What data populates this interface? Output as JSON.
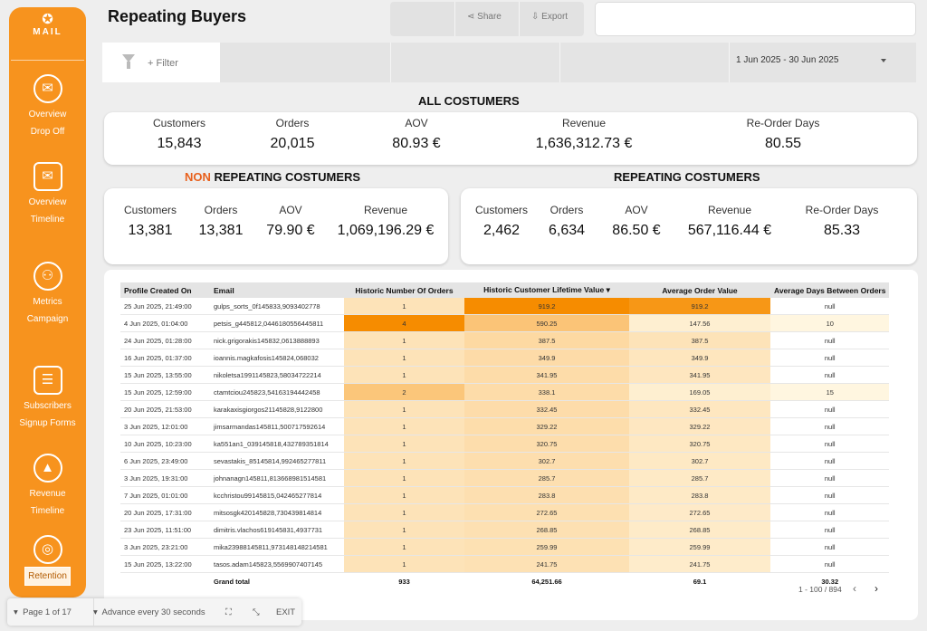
{
  "sidebar": {
    "logo_text": "MAIL",
    "items": [
      {
        "line1": "Overview",
        "line2": "Drop Off",
        "icon": "envelope-gear-icon"
      },
      {
        "line1": "Overview",
        "line2": "Timeline",
        "icon": "envelope-star-icon"
      },
      {
        "line1": "Metrics",
        "line2": "Campaign",
        "icon": "people-network-icon"
      },
      {
        "line1": "Subscribers",
        "line2": "Signup Forms",
        "icon": "form-list-icon"
      },
      {
        "line1": "Revenue",
        "line2": "Timeline",
        "icon": "revenue-chart-icon"
      },
      {
        "line1": "Retention",
        "icon": "retention-icon"
      }
    ]
  },
  "header": {
    "title": "Repeating Buyers",
    "share_label": "Share",
    "export_label": "Export"
  },
  "filter": {
    "add_label": "+ Filter",
    "date_range": "1 Jun 2025 - 30 Jun 2025"
  },
  "all": {
    "title": "ALL COSTUMERS",
    "kpis": [
      {
        "label": "Customers",
        "value": "15,843"
      },
      {
        "label": "Orders",
        "value": "20,015"
      },
      {
        "label": "AOV",
        "value": "80.93 €"
      },
      {
        "label": "Revenue",
        "value": "1,636,312.73 €"
      },
      {
        "label": "Re-Order Days",
        "value": "80.55"
      }
    ]
  },
  "non_repeating": {
    "title_accent": "NON",
    "title_rest": " REPEATING COSTUMERS",
    "kpis": [
      {
        "label": "Customers",
        "value": "13,381"
      },
      {
        "label": "Orders",
        "value": "13,381"
      },
      {
        "label": "AOV",
        "value": "79.90 €"
      },
      {
        "label": "Revenue",
        "value": "1,069,196.29 €"
      }
    ]
  },
  "repeating": {
    "title": "REPEATING COSTUMERS",
    "kpis": [
      {
        "label": "Customers",
        "value": "2,462"
      },
      {
        "label": "Orders",
        "value": "6,634"
      },
      {
        "label": "AOV",
        "value": "86.50 €"
      },
      {
        "label": "Revenue",
        "value": "567,116.44 €"
      },
      {
        "label": "Re-Order Days",
        "value": "85.33"
      }
    ]
  },
  "table": {
    "columns": [
      "Profile Created On",
      "Email",
      "Historic Number Of Orders",
      "Historic Customer Lifetime Value",
      "Average Order Value",
      "Average Days Between Orders"
    ],
    "sort_indicator": "▾",
    "rows": [
      [
        "25 Jun 2025, 21:49:00",
        "gulps_sorts_0f145833,9093402778",
        "1",
        "919.2",
        "919.2",
        "null"
      ],
      [
        "4 Jun 2025, 01:04:00",
        "petsis_g445812,0446180556445811",
        "4",
        "590.25",
        "147.56",
        "10"
      ],
      [
        "24 Jun 2025, 01:28:00",
        "nick.grigorakis145832,0613888893",
        "1",
        "387.5",
        "387.5",
        "null"
      ],
      [
        "16 Jun 2025, 01:37:00",
        "ioannis.magkafosis145824,068032",
        "1",
        "349.9",
        "349.9",
        "null"
      ],
      [
        "15 Jun 2025, 13:55:00",
        "nikoletsa1991145823,58034722214",
        "1",
        "341.95",
        "341.95",
        "null"
      ],
      [
        "15 Jun 2025, 12:59:00",
        "ctamtciou245823,54163194442458",
        "2",
        "338.1",
        "169.05",
        "15"
      ],
      [
        "20 Jun 2025, 21:53:00",
        "karakaxisgiorgos21145828,9122800",
        "1",
        "332.45",
        "332.45",
        "null"
      ],
      [
        "3 Jun 2025, 12:01:00",
        "jimsarmandas145811,500717592614",
        "1",
        "329.22",
        "329.22",
        "null"
      ],
      [
        "10 Jun 2025, 10:23:00",
        "ka551an1_039145818,432789351814",
        "1",
        "320.75",
        "320.75",
        "null"
      ],
      [
        "6 Jun 2025, 23:49:00",
        "sevastakis_85145814,992465277811",
        "1",
        "302.7",
        "302.7",
        "null"
      ],
      [
        "3 Jun 2025, 19:31:00",
        "johnanagn145811,813668981514581",
        "1",
        "285.7",
        "285.7",
        "null"
      ],
      [
        "7 Jun 2025, 01:01:00",
        "kcchristou99145815,042465277814",
        "1",
        "283.8",
        "283.8",
        "null"
      ],
      [
        "20 Jun 2025, 17:31:00",
        "mitsosgk420145828,730439814814",
        "1",
        "272.65",
        "272.65",
        "null"
      ],
      [
        "23 Jun 2025, 11:51:00",
        "dimitris.vlachos619145831,4937731",
        "1",
        "268.85",
        "268.85",
        "null"
      ],
      [
        "3 Jun 2025, 23:21:00",
        "mika23988145811,973148148214581",
        "1",
        "259.99",
        "259.99",
        "null"
      ],
      [
        "15 Jun 2025, 13:22:00",
        "tasos.adam145823,5569907407145",
        "1",
        "241.75",
        "241.75",
        "null"
      ]
    ],
    "total": {
      "label": "Grand total",
      "orders": "933",
      "clv": "64,251.66",
      "aov": "69.1",
      "days": "30.32"
    },
    "pagination": "1 - 100 / 894"
  },
  "colors": {
    "accent": "#f7931e",
    "heat_low": "#fff6e0",
    "heat_high": "#f68c00"
  },
  "footer": {
    "page": "Page 1 of 17",
    "advance": "Advance every 30 seconds",
    "exit": "EXIT"
  }
}
